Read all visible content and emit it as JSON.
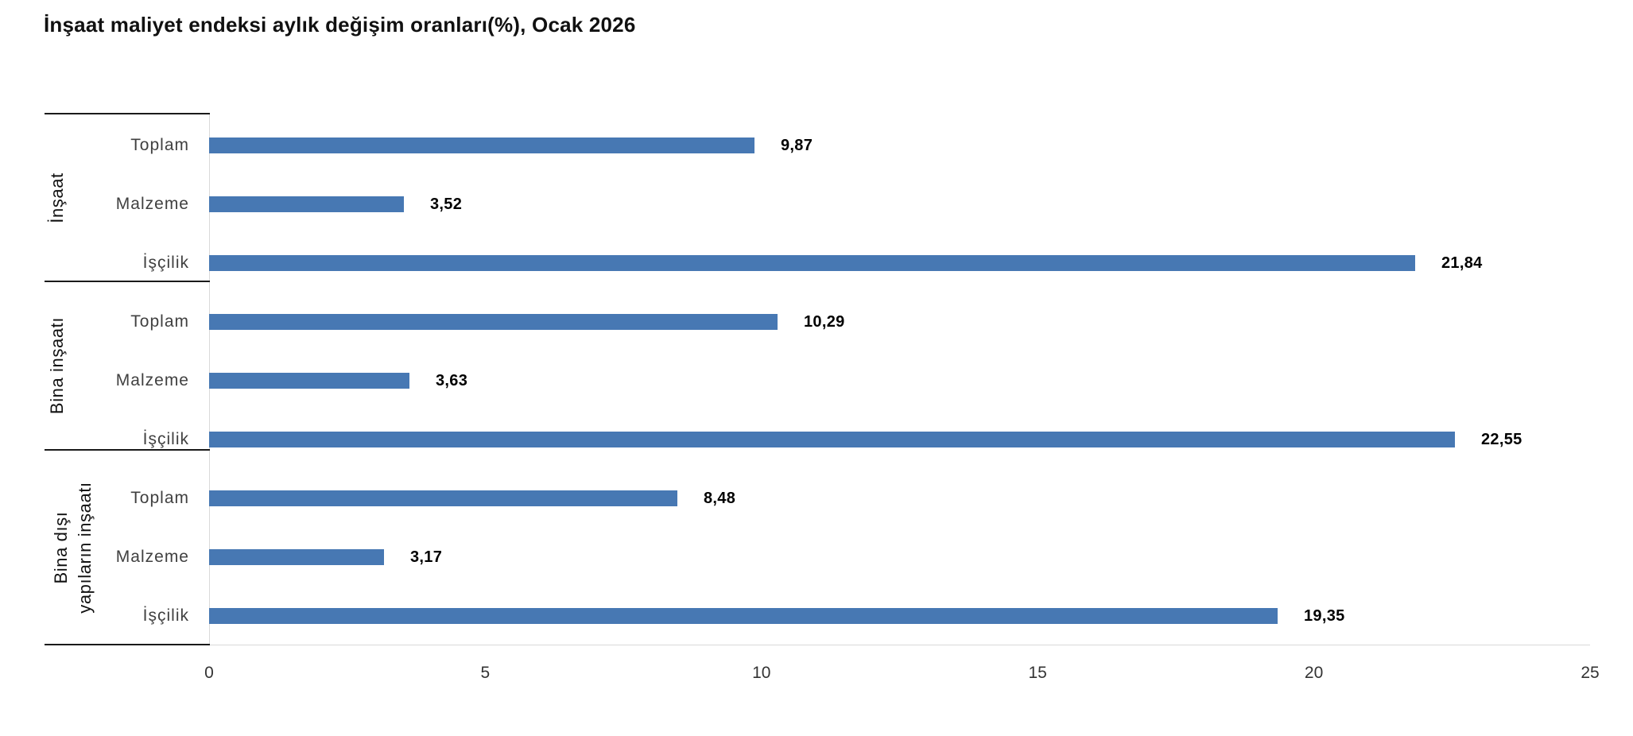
{
  "title": "İnşaat maliyet endeksi aylık değişim oranları(%), Ocak 2026",
  "chart_data": {
    "type": "bar",
    "orientation": "horizontal",
    "title": "İnşaat maliyet endeksi aylık değişim oranları(%), Ocak 2026",
    "xlabel": "",
    "ylabel": "",
    "xlim": [
      0,
      25
    ],
    "x_ticks": [
      "0",
      "5",
      "10",
      "15",
      "20",
      "25"
    ],
    "grid": "off",
    "legend": "none",
    "bar_color": "#4778B3",
    "value_label_color": "#000000",
    "groups": [
      {
        "label": "İnşaat",
        "items": [
          {
            "category": "Toplam",
            "value": 9.87,
            "value_label": "9,87"
          },
          {
            "category": "Malzeme",
            "value": 3.52,
            "value_label": "3,52"
          },
          {
            "category": "İşçilik",
            "value": 21.84,
            "value_label": "21,84"
          }
        ]
      },
      {
        "label": "Bina inşaatı",
        "items": [
          {
            "category": "Toplam",
            "value": 10.29,
            "value_label": "10,29"
          },
          {
            "category": "Malzeme",
            "value": 3.63,
            "value_label": "3,63"
          },
          {
            "category": "İşçilik",
            "value": 22.55,
            "value_label": "22,55"
          }
        ]
      },
      {
        "label": "Bina dışı\nyapıların inşaatı",
        "items": [
          {
            "category": "Toplam",
            "value": 8.48,
            "value_label": "8,48"
          },
          {
            "category": "Malzeme",
            "value": 3.17,
            "value_label": "3,17"
          },
          {
            "category": "İşçilik",
            "value": 19.35,
            "value_label": "19,35"
          }
        ]
      }
    ]
  }
}
